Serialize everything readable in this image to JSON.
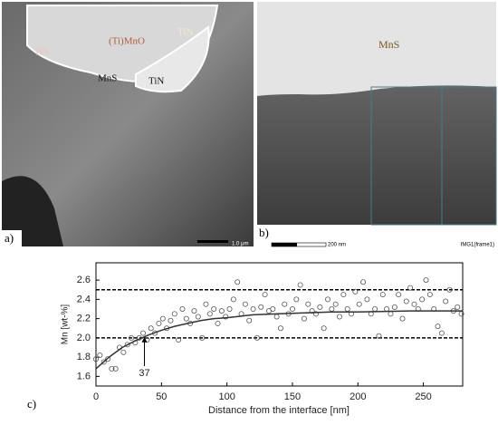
{
  "micrographs": [
    {
      "panel": "a)",
      "labels": [
        "(Ti)MnO",
        "TiN",
        "TiN",
        "MnS",
        "TiN"
      ],
      "scale_bar": "1.0 μm"
    },
    {
      "panel": "b)",
      "labels": [
        "MnS"
      ],
      "scale_bar": "200 nm",
      "caption": "IMG1(frame1)"
    }
  ],
  "chart_panel": "c)",
  "chart_data": {
    "type": "scatter",
    "x_label": "Distance from the interface [nm]",
    "y_label": "Mn [wt-%]",
    "x": [
      0,
      3,
      6,
      9,
      12,
      15,
      18,
      21,
      24,
      27,
      30,
      33,
      36,
      39,
      42,
      45,
      48,
      51,
      54,
      57,
      60,
      63,
      66,
      69,
      72,
      75,
      78,
      81,
      84,
      87,
      90,
      93,
      96,
      99,
      102,
      105,
      108,
      111,
      114,
      117,
      120,
      123,
      126,
      129,
      132,
      135,
      138,
      141,
      144,
      147,
      150,
      153,
      156,
      159,
      162,
      165,
      168,
      171,
      174,
      177,
      180,
      183,
      186,
      189,
      192,
      195,
      198,
      201,
      204,
      207,
      210,
      213,
      216,
      219,
      222,
      225,
      228,
      231,
      234,
      237,
      240,
      243,
      246,
      249,
      252,
      255,
      258,
      261,
      264,
      267,
      270,
      273,
      276,
      279
    ],
    "values": [
      1.78,
      1.82,
      1.75,
      1.78,
      1.68,
      1.68,
      1.9,
      1.85,
      1.93,
      2.0,
      1.95,
      2.0,
      2.05,
      1.98,
      2.1,
      2.05,
      2.15,
      2.2,
      2.1,
      2.18,
      2.25,
      1.98,
      2.3,
      2.2,
      2.15,
      2.28,
      2.22,
      2.0,
      2.35,
      2.25,
      2.3,
      2.15,
      2.28,
      2.22,
      2.3,
      2.4,
      2.58,
      2.25,
      2.35,
      2.18,
      2.3,
      2.0,
      2.32,
      2.45,
      2.28,
      2.3,
      2.22,
      2.1,
      2.35,
      2.25,
      2.3,
      2.4,
      2.55,
      2.2,
      2.35,
      2.28,
      2.25,
      2.32,
      2.1,
      2.4,
      2.3,
      2.35,
      2.22,
      2.45,
      2.3,
      2.25,
      2.48,
      2.35,
      2.58,
      2.4,
      2.25,
      2.3,
      2.02,
      2.45,
      2.3,
      2.25,
      2.32,
      2.45,
      2.2,
      2.38,
      2.52,
      2.35,
      2.3,
      2.4,
      2.6,
      2.45,
      2.3,
      2.12,
      2.05,
      2.38,
      2.5,
      2.28,
      2.32,
      2.25
    ],
    "fit": {
      "x": [
        0,
        10,
        20,
        30,
        40,
        50,
        60,
        70,
        80,
        90,
        100,
        120,
        140,
        160,
        180,
        200,
        240,
        280
      ],
      "values": [
        1.68,
        1.8,
        1.9,
        1.97,
        2.03,
        2.08,
        2.12,
        2.15,
        2.18,
        2.2,
        2.21,
        2.24,
        2.25,
        2.26,
        2.27,
        2.27,
        2.28,
        2.28
      ]
    },
    "hlines": [
      2.5,
      2.0
    ],
    "annotation": {
      "label": "37",
      "x": 37,
      "y": 2.03
    },
    "xlim": [
      0,
      280
    ],
    "xticks": [
      0,
      50,
      100,
      150,
      200,
      250
    ],
    "ylim": [
      1.5,
      2.78
    ],
    "yticks": [
      1.6,
      1.8,
      {
        "value": 2,
        "label": "2.0"
      },
      2.2,
      2.4,
      2.6
    ],
    "marker_color": "#555555",
    "line_color": "#333333"
  }
}
